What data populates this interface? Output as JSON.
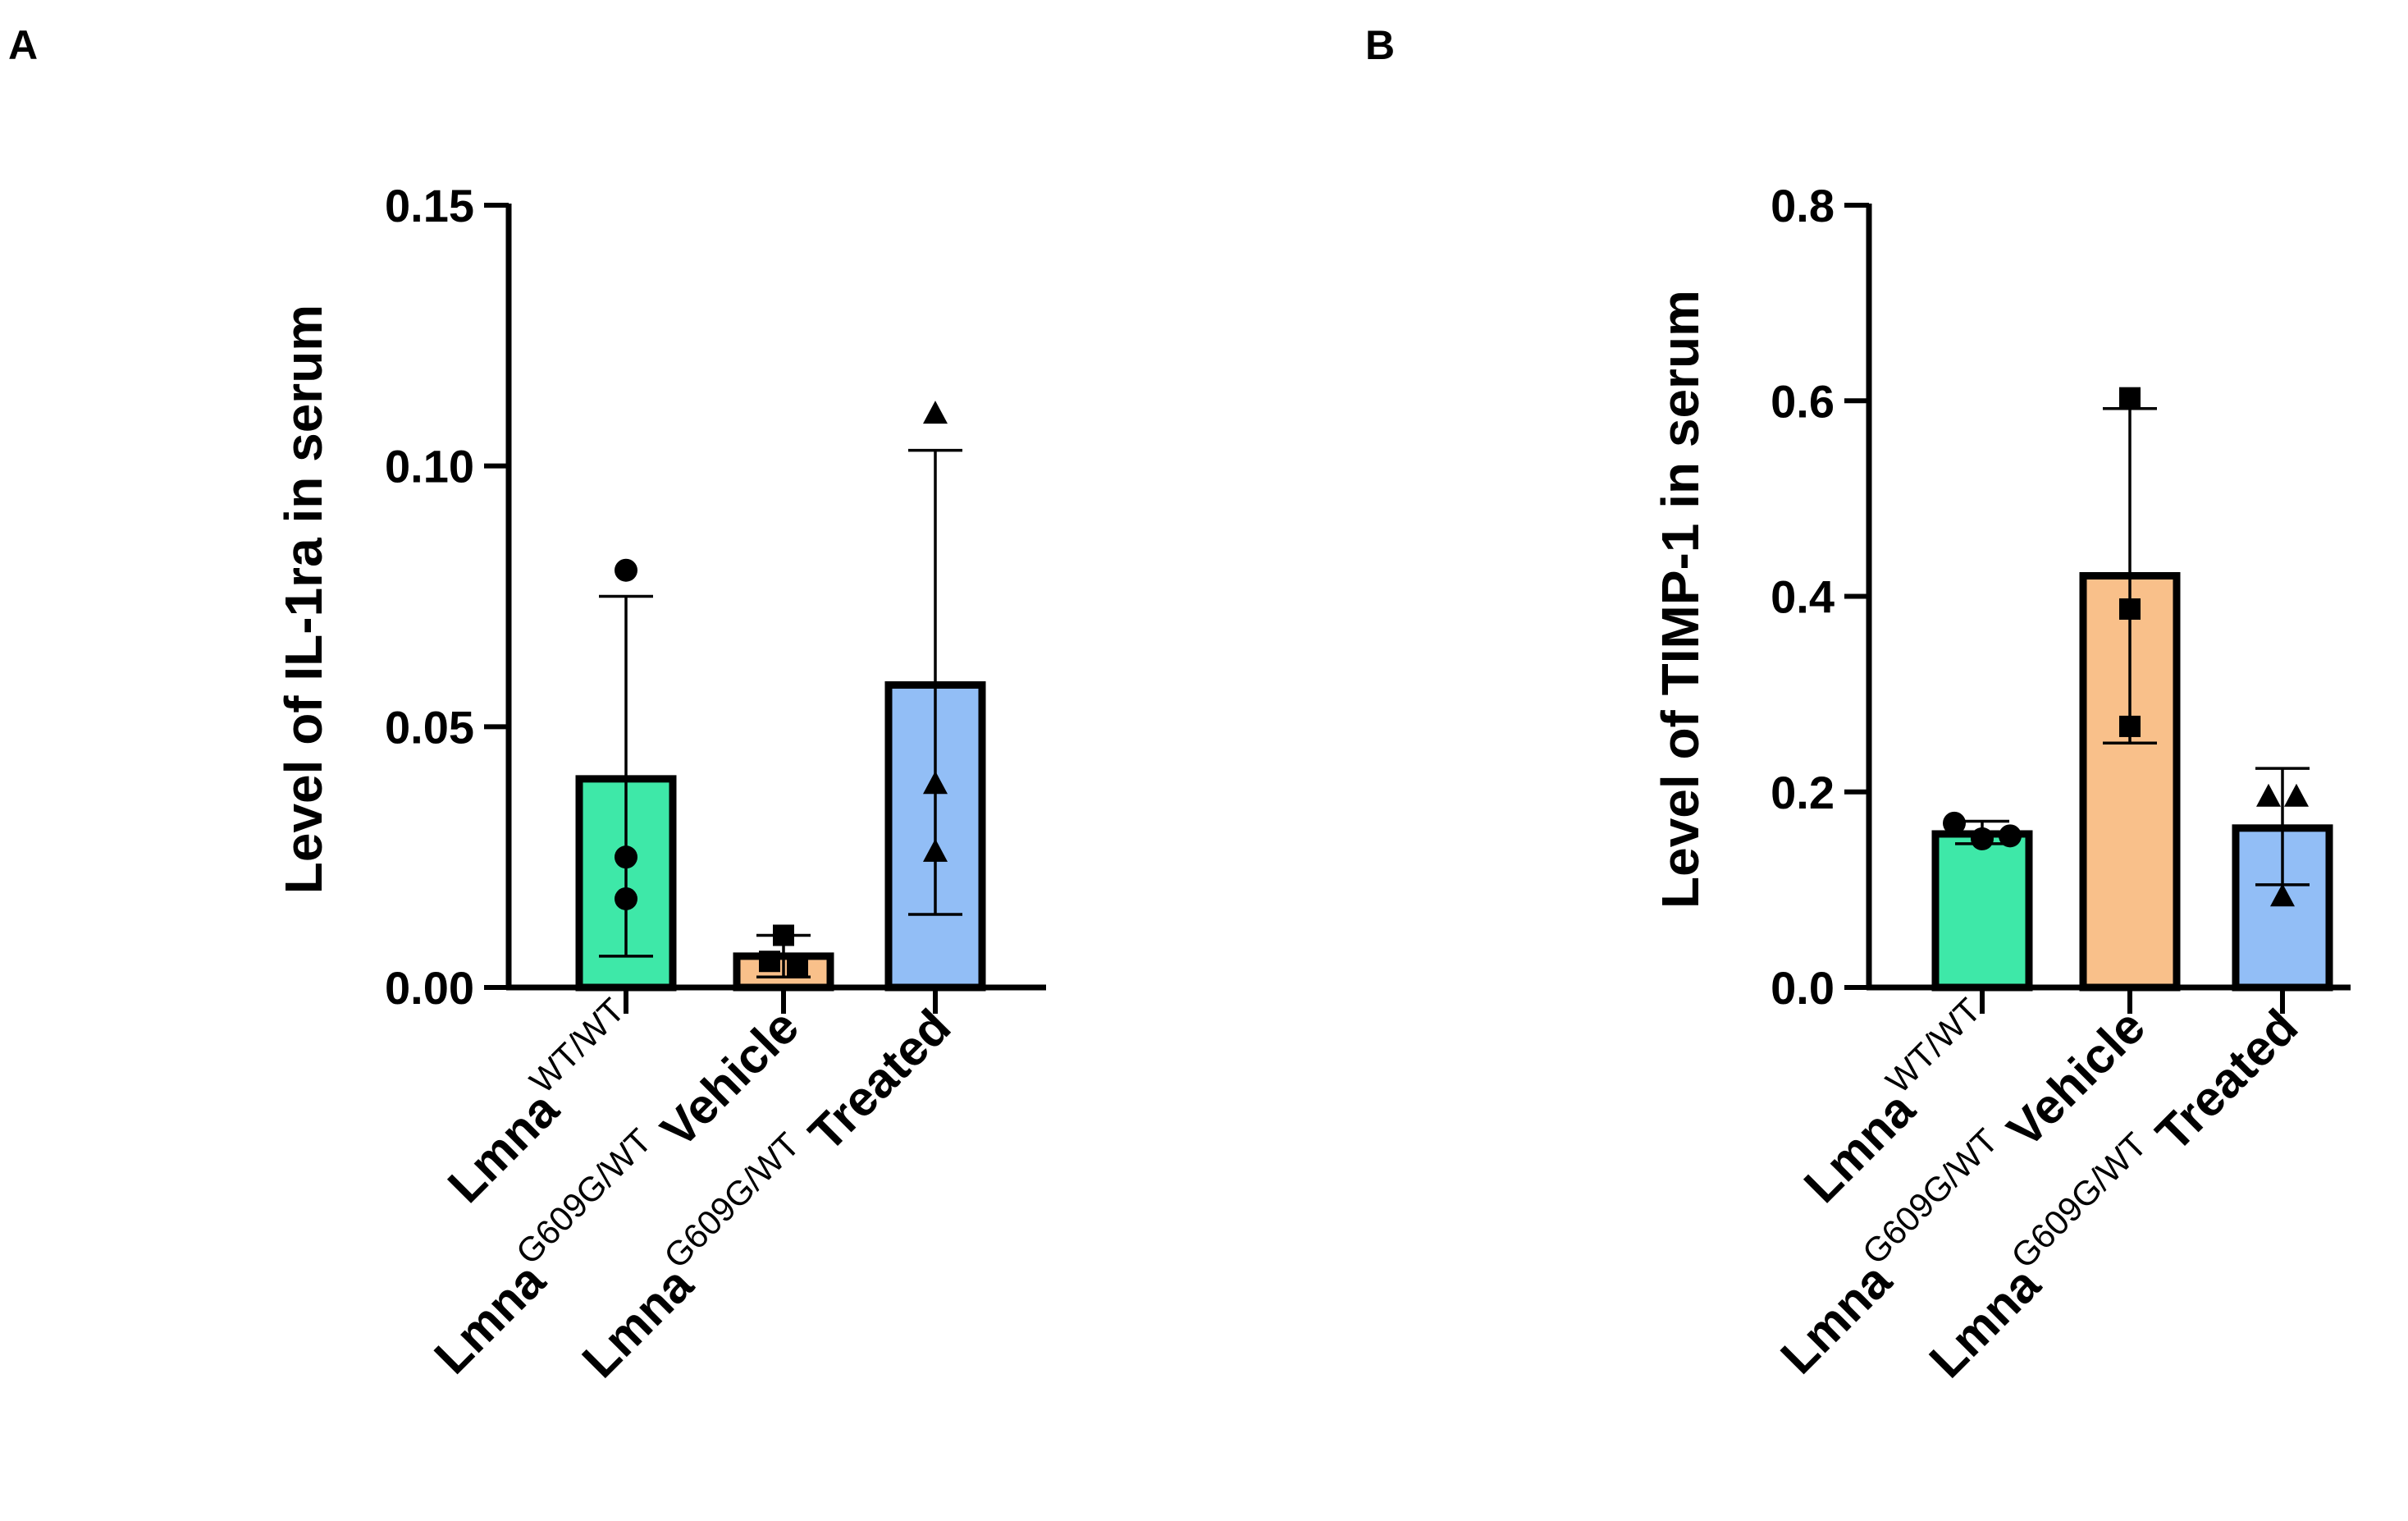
{
  "chart_data": [
    {
      "panel": "A",
      "type": "bar",
      "ylabel": "Level of IL-1ra in serum",
      "xlabel": "",
      "ylim": [
        0,
        0.15
      ],
      "yticks": [
        "0.00",
        "0.05",
        "0.10",
        "0.15"
      ],
      "ytick_values": [
        0,
        0.05,
        0.1,
        0.15
      ],
      "categories": [
        {
          "main": "Lmna",
          "sup": "WT/WT",
          "suffix": ""
        },
        {
          "main": "Lmna",
          "sup": "G609G/WT",
          "suffix": "Vehicle"
        },
        {
          "main": "Lmna",
          "sup": "G609G/WT",
          "suffix": "Treated"
        }
      ],
      "values": [
        0.04,
        0.006,
        0.058
      ],
      "error_upper": [
        0.075,
        0.01,
        0.103
      ],
      "error_lower": [
        0.006,
        0.002,
        0.014
      ],
      "points": [
        [
          0.08,
          0.025,
          0.017
        ],
        [
          0.01,
          0.005,
          0.004
        ],
        [
          0.11,
          0.039,
          0.026
        ]
      ],
      "markers": [
        "circle",
        "square",
        "triangle"
      ],
      "colors": [
        "#3ee8a8",
        "#f9c08a",
        "#92bef6"
      ]
    },
    {
      "panel": "B",
      "type": "bar",
      "ylabel": "Level of TIMP-1 in serum",
      "xlabel": "",
      "ylim": [
        0,
        0.8
      ],
      "yticks": [
        "0.0",
        "0.2",
        "0.4",
        "0.6",
        "0.8"
      ],
      "ytick_values": [
        0,
        0.2,
        0.4,
        0.6,
        0.8
      ],
      "categories": [
        {
          "main": "Lmna",
          "sup": "WT/WT",
          "suffix": ""
        },
        {
          "main": "Lmna",
          "sup": "G609G/WT",
          "suffix": "Vehicle"
        },
        {
          "main": "Lmna",
          "sup": "G609G/WT",
          "suffix": "Treated"
        }
      ],
      "values": [
        0.157,
        0.421,
        0.163
      ],
      "error_upper": [
        0.17,
        0.592,
        0.224
      ],
      "error_lower": [
        0.147,
        0.25,
        0.105
      ],
      "points": [
        [
          0.168,
          0.152,
          0.155
        ],
        [
          0.603,
          0.387,
          0.267
        ],
        [
          0.195,
          0.195,
          0.093
        ]
      ],
      "markers": [
        "circle",
        "square",
        "triangle"
      ],
      "colors": [
        "#3ee8a8",
        "#f9c08a",
        "#92bef6"
      ]
    }
  ]
}
